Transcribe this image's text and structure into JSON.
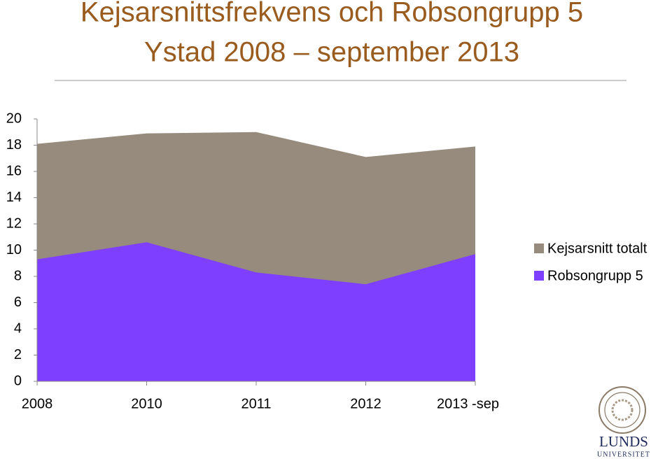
{
  "chart_data": {
    "type": "area",
    "title": [
      "Kejsarsnittsfrekvens och Robsongrupp 5",
      "Ystad 2008 – september 2013"
    ],
    "categories": [
      "2008",
      "2010",
      "2011",
      "2012",
      "2013 -sep"
    ],
    "series": [
      {
        "name": "Kejsarsnitt totalt",
        "color": "#978b7d",
        "values": [
          18.1,
          18.9,
          19.0,
          17.1,
          17.9
        ]
      },
      {
        "name": "Robsongrupp 5",
        "color": "#7f3fff",
        "values": [
          9.3,
          10.6,
          8.3,
          7.4,
          9.7
        ]
      }
    ],
    "ylim": [
      0,
      20
    ],
    "yticks": [
      0,
      2,
      4,
      6,
      8,
      10,
      12,
      14,
      16,
      18,
      20
    ],
    "legend": "right"
  },
  "logo": {
    "name": "LUNDS",
    "subtitle": "UNIVERSITET"
  }
}
